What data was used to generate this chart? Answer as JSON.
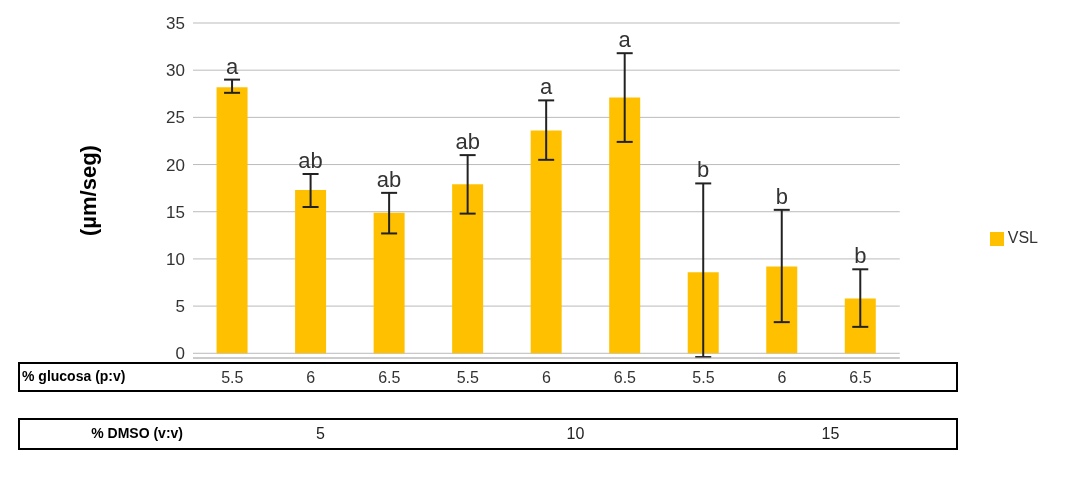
{
  "chart_data": {
    "type": "bar",
    "ylabel": "(µm/seg)",
    "xlabel": "% glucosa (p:v)",
    "categories": [
      "5.5",
      "6",
      "6.5",
      "5.5",
      "6",
      "6.5",
      "5.5",
      "6",
      "6.5"
    ],
    "series": [
      {
        "name": "VSL",
        "color": "#ffc000",
        "values": [
          28.2,
          17.3,
          14.9,
          17.9,
          23.6,
          27.1,
          8.6,
          9.2,
          5.8
        ],
        "errors": [
          [
            27.6,
            29
          ],
          [
            15.5,
            19
          ],
          [
            12.7,
            17
          ],
          [
            14.8,
            21
          ],
          [
            20.5,
            26.8
          ],
          [
            22.4,
            31.8
          ],
          [
            -0.4,
            18
          ],
          [
            3.3,
            15.2
          ],
          [
            2.8,
            8.9
          ]
        ]
      }
    ],
    "annotations": [
      "a",
      "ab",
      "ab",
      "ab",
      "a",
      "a",
      "b",
      "b",
      "b",
      "% DMSO (v:v)",
      "5",
      "10",
      "15"
    ],
    "ylim": [
      -0.5,
      35
    ],
    "yticks": [
      0,
      5,
      10,
      15,
      20,
      25,
      30,
      35
    ],
    "grid": "y",
    "legend": "right"
  }
}
